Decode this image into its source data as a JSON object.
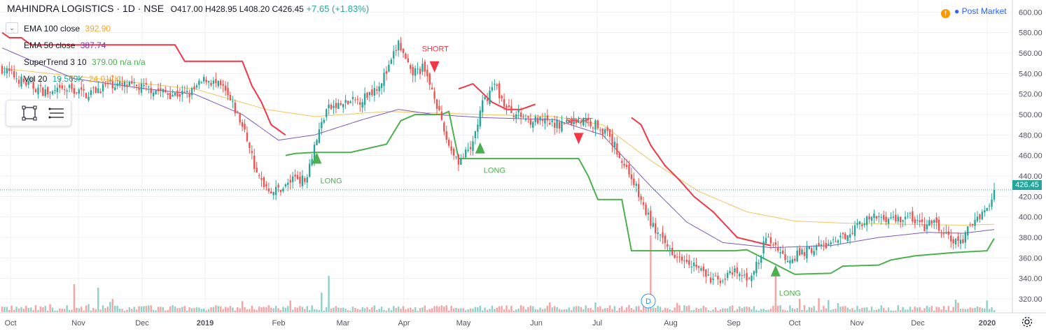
{
  "header": {
    "symbol": "MAHINDRA LOGISTICS · 1D · NSE",
    "ohlc": "O417.00 H428.95 L408.20 C426.45",
    "change": "+7.65 (+1.83%)",
    "post_market": "Post Market",
    "alert_icon": "exclamation-icon"
  },
  "legend": [
    {
      "name": "EMA 100 close",
      "value": "392.90",
      "color": "#f4a62a"
    },
    {
      "name": "EMA 50 close",
      "value": "387.74",
      "color": "#673ab7"
    },
    {
      "name": "SuperTrend 3 10",
      "value": "379.00 n/a n/a",
      "color": "#4caf50",
      "na_color": "#f23645"
    },
    {
      "name": "Vol 20",
      "value": "19.569K",
      "value2": "24.017K",
      "color": "#26a69a",
      "color2": "#f4a62a"
    }
  ],
  "current_price_label": "426.45",
  "colors": {
    "up": "#26a69a",
    "down": "#ef5350",
    "ema100": "#f4c55a",
    "ema50": "#7e57c2",
    "st_up": "#4caf50",
    "st_down": "#f23645",
    "vol_up": "#8fd0c7",
    "vol_down": "#f5a3a3",
    "grid": "#eef0f3"
  },
  "chart_data": {
    "type": "candlestick",
    "y_ticks": [
      320,
      340,
      360,
      380,
      400,
      420,
      440,
      460,
      480,
      500,
      520,
      540,
      560,
      580,
      600
    ],
    "ylim": [
      306,
      610
    ],
    "x_labels": [
      "Oct",
      "Nov",
      "Dec",
      "2019",
      "Feb",
      "Mar",
      "Apr",
      "May",
      "Jun",
      "Jul",
      "Aug",
      "Sep",
      "Oct",
      "Nov",
      "Dec",
      "2020"
    ],
    "last_price": 426.45,
    "close_path": [
      [
        0,
        545
      ],
      [
        10,
        530
      ],
      [
        20,
        520
      ],
      [
        28,
        525
      ],
      [
        35,
        520
      ],
      [
        45,
        530
      ],
      [
        55,
        527
      ],
      [
        62,
        525
      ],
      [
        70,
        520
      ],
      [
        78,
        520
      ],
      [
        85,
        535
      ],
      [
        92,
        525
      ],
      [
        98,
        500
      ],
      [
        103,
        470
      ],
      [
        106,
        440
      ],
      [
        110,
        430
      ],
      [
        113,
        425
      ],
      [
        118,
        430
      ],
      [
        122,
        440
      ],
      [
        126,
        435
      ],
      [
        130,
        470
      ],
      [
        135,
        505
      ],
      [
        142,
        510
      ],
      [
        150,
        515
      ],
      [
        157,
        530
      ],
      [
        161,
        545
      ],
      [
        165,
        570
      ],
      [
        170,
        540
      ],
      [
        175,
        545
      ],
      [
        180,
        520
      ],
      [
        183,
        490
      ],
      [
        186,
        470
      ],
      [
        190,
        455
      ],
      [
        195,
        465
      ],
      [
        200,
        510
      ],
      [
        205,
        530
      ],
      [
        210,
        505
      ],
      [
        220,
        495
      ],
      [
        230,
        490
      ],
      [
        240,
        495
      ],
      [
        248,
        490
      ],
      [
        252,
        480
      ],
      [
        256,
        465
      ],
      [
        258,
        455
      ],
      [
        262,
        440
      ],
      [
        266,
        415
      ],
      [
        270,
        395
      ],
      [
        275,
        375
      ],
      [
        280,
        365
      ],
      [
        285,
        360
      ],
      [
        290,
        350
      ],
      [
        295,
        338
      ],
      [
        300,
        340
      ],
      [
        305,
        345
      ],
      [
        310,
        340
      ],
      [
        315,
        355
      ],
      [
        318,
        380
      ],
      [
        322,
        372
      ],
      [
        326,
        360
      ],
      [
        330,
        362
      ],
      [
        336,
        368
      ],
      [
        342,
        372
      ],
      [
        348,
        375
      ],
      [
        352,
        385
      ],
      [
        358,
        395
      ],
      [
        365,
        400
      ],
      [
        372,
        398
      ],
      [
        378,
        400
      ],
      [
        384,
        390
      ],
      [
        388,
        395
      ],
      [
        391,
        385
      ],
      [
        394,
        380
      ],
      [
        397,
        375
      ],
      [
        400,
        378
      ],
      [
        404,
        395
      ],
      [
        408,
        405
      ],
      [
        411,
        410
      ],
      [
        413,
        426.45
      ]
    ],
    "ema100": [
      [
        0,
        545
      ],
      [
        40,
        535
      ],
      [
        80,
        525
      ],
      [
        110,
        505
      ],
      [
        130,
        498
      ],
      [
        160,
        503
      ],
      [
        200,
        500
      ],
      [
        230,
        498
      ],
      [
        250,
        490
      ],
      [
        270,
        455
      ],
      [
        290,
        425
      ],
      [
        310,
        405
      ],
      [
        330,
        396
      ],
      [
        350,
        394
      ],
      [
        370,
        393
      ],
      [
        400,
        392
      ],
      [
        413,
        392.9
      ]
    ],
    "ema50": [
      [
        0,
        565
      ],
      [
        30,
        535
      ],
      [
        60,
        525
      ],
      [
        80,
        520
      ],
      [
        100,
        500
      ],
      [
        115,
        475
      ],
      [
        130,
        480
      ],
      [
        150,
        495
      ],
      [
        165,
        505
      ],
      [
        180,
        500
      ],
      [
        200,
        497
      ],
      [
        230,
        495
      ],
      [
        250,
        480
      ],
      [
        270,
        430
      ],
      [
        285,
        395
      ],
      [
        300,
        375
      ],
      [
        320,
        370
      ],
      [
        345,
        372
      ],
      [
        365,
        380
      ],
      [
        385,
        385
      ],
      [
        400,
        384
      ],
      [
        413,
        387.74
      ]
    ],
    "supertrend_up": [
      [
        118,
        460
      ],
      [
        122,
        462
      ],
      [
        130,
        463
      ],
      [
        145,
        463
      ],
      [
        160,
        471
      ],
      [
        166,
        494
      ],
      [
        172,
        500
      ],
      [
        183,
        500
      ],
      [
        186,
        503
      ],
      [
        190,
        457
      ],
      [
        240,
        457
      ],
      [
        244,
        440
      ],
      [
        248,
        417
      ],
      [
        258,
        417
      ],
      [
        262,
        367
      ],
      [
        290,
        367
      ],
      [
        305,
        367
      ],
      [
        310,
        368
      ],
      [
        330,
        344
      ],
      [
        345,
        345
      ],
      [
        350,
        352
      ],
      [
        365,
        353
      ],
      [
        370,
        358
      ],
      [
        380,
        362
      ],
      [
        395,
        365
      ],
      [
        410,
        367
      ],
      [
        413,
        379
      ]
    ]
  }
}
